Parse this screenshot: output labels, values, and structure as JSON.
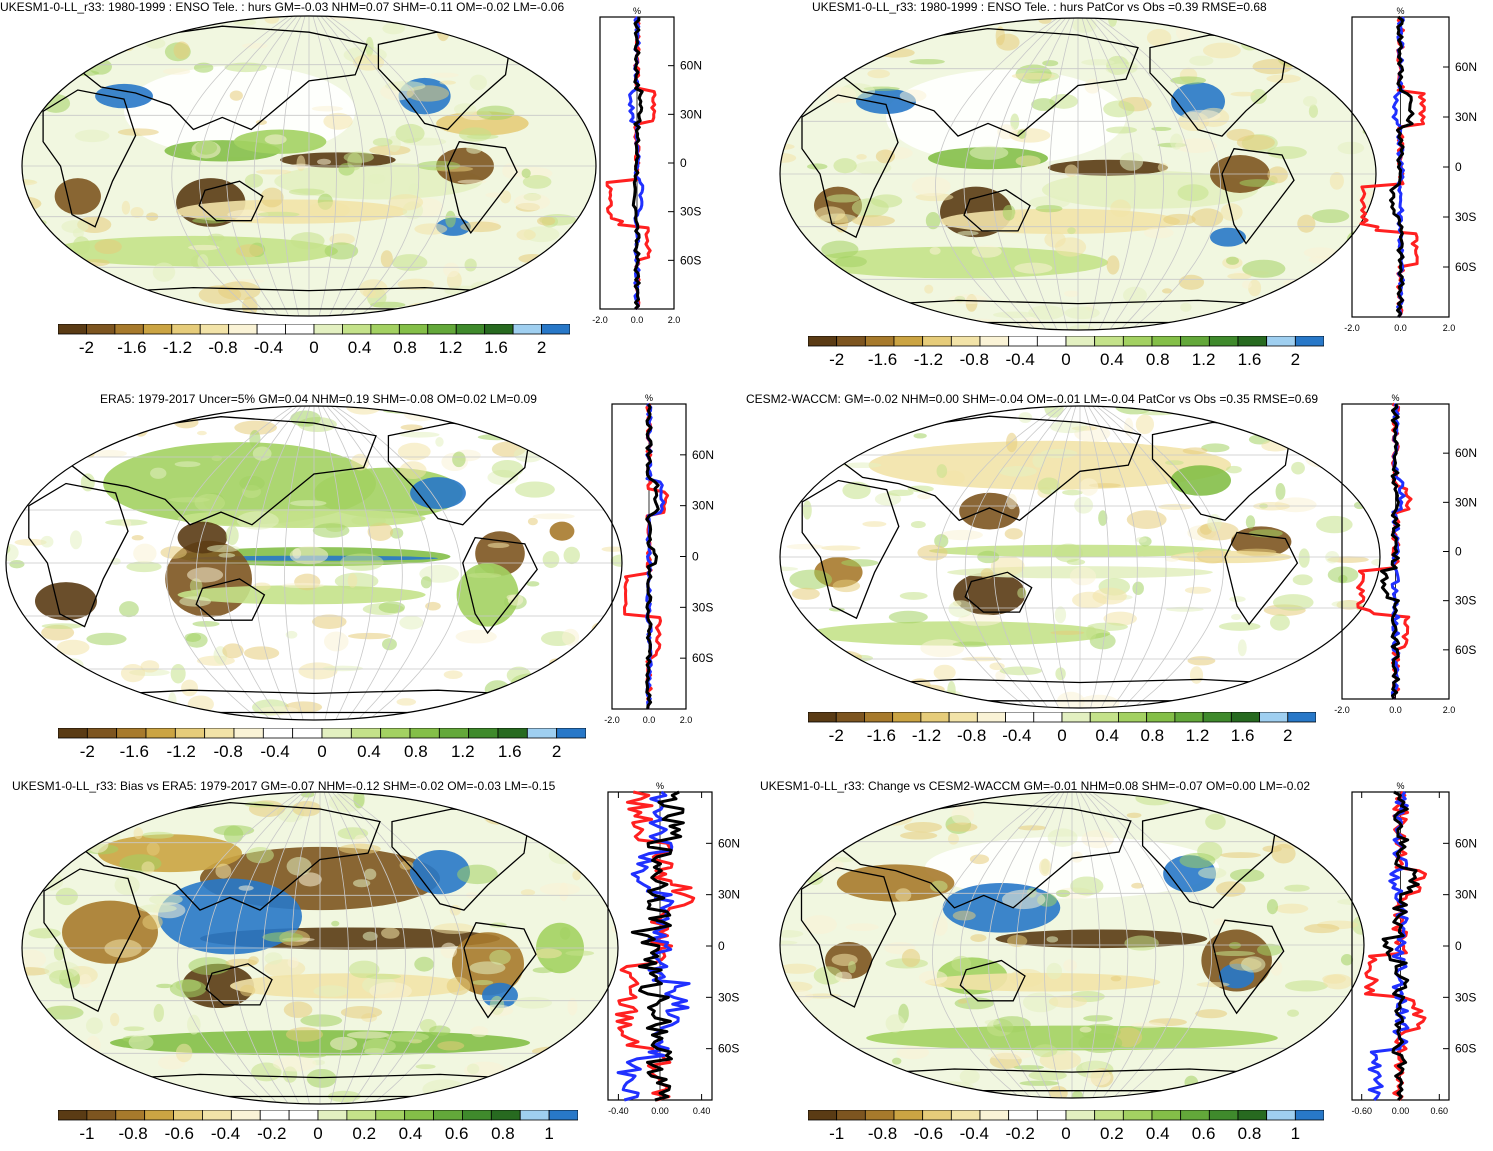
{
  "panels": [
    {
      "id": "p1",
      "title": "UKESM1-0-LL_r33: 1980-1999 : ENSO Tele. : hurs GM=-0.03 NHM=0.07 SHM=-0.11 OM=-0.02 LM=-0.06",
      "zonal": {
        "unit": "%",
        "lat_labels": [
          "60N",
          "30N",
          "0",
          "30S",
          "60S"
        ],
        "x_ticks": [
          "-2.0",
          "0.0",
          "2.0"
        ]
      },
      "colorbar": {
        "labels": [
          "-2",
          "-1.6",
          "-1.2",
          "-0.8",
          "-0.4",
          "0",
          "0.4",
          "0.8",
          "1.2",
          "1.6",
          "2"
        ]
      }
    },
    {
      "id": "p2",
      "title": "UKESM1-0-LL_r33: 1980-1999 : ENSO Tele. : hurs PatCor vs Obs =0.39 RMSE=0.68",
      "zonal": {
        "unit": "%",
        "lat_labels": [
          "60N",
          "30N",
          "0",
          "30S",
          "60S"
        ],
        "x_ticks": [
          "-2.0",
          "0.0",
          "2.0"
        ]
      },
      "colorbar": {
        "labels": [
          "-2",
          "-1.6",
          "-1.2",
          "-0.8",
          "-0.4",
          "0",
          "0.4",
          "0.8",
          "1.2",
          "1.6",
          "2"
        ]
      }
    },
    {
      "id": "p3",
      "title": "ERA5: 1979-2017 Uncer=5% GM=0.04 NHM=0.19 SHM=-0.08 OM=0.02 LM=0.09",
      "zonal": {
        "unit": "%",
        "lat_labels": [
          "60N",
          "30N",
          "0",
          "30S",
          "60S"
        ],
        "x_ticks": [
          "-2.0",
          "0.0",
          "2.0"
        ]
      },
      "colorbar": {
        "labels": [
          "-2",
          "-1.6",
          "-1.2",
          "-0.8",
          "-0.4",
          "0",
          "0.4",
          "0.8",
          "1.2",
          "1.6",
          "2"
        ]
      }
    },
    {
      "id": "p4",
      "title": "CESM2-WACCM: GM=-0.02 NHM=0.00 SHM=-0.04 OM=-0.01 LM=-0.04 PatCor vs Obs =0.35 RMSE=0.69",
      "zonal": {
        "unit": "%",
        "lat_labels": [
          "60N",
          "30N",
          "0",
          "30S",
          "60S"
        ],
        "x_ticks": [
          "-2.0",
          "0.0",
          "2.0"
        ]
      },
      "colorbar": {
        "labels": [
          "-2",
          "-1.6",
          "-1.2",
          "-0.8",
          "-0.4",
          "0",
          "0.4",
          "0.8",
          "1.2",
          "1.6",
          "2"
        ]
      }
    },
    {
      "id": "p5",
      "title": "UKESM1-0-LL_r33: Bias vs ERA5: 1979-2017 GM=-0.07 NHM=-0.12 SHM=-0.02 OM=-0.03 LM=-0.15",
      "zonal": {
        "unit": "%",
        "lat_labels": [
          "60N",
          "30N",
          "0",
          "30S",
          "60S"
        ],
        "x_ticks": [
          "-0.40",
          "0.00",
          "0.40"
        ]
      },
      "colorbar": {
        "labels": [
          "-1",
          "-0.8",
          "-0.6",
          "-0.4",
          "-0.2",
          "0",
          "0.2",
          "0.4",
          "0.6",
          "0.8",
          "1"
        ]
      }
    },
    {
      "id": "p6",
      "title": "UKESM1-0-LL_r33: Change vs CESM2-WACCM GM=-0.01 NHM=0.08 SHM=-0.07 OM=0.00 LM=-0.02",
      "zonal": {
        "unit": "%",
        "lat_labels": [
          "60N",
          "30N",
          "0",
          "30S",
          "60S"
        ],
        "x_ticks": [
          "-0.60",
          "0.00",
          "0.60"
        ]
      },
      "colorbar": {
        "labels": [
          "-1",
          "-0.8",
          "-0.6",
          "-0.4",
          "-0.2",
          "0",
          "0.2",
          "0.4",
          "0.6",
          "0.8",
          "1"
        ]
      }
    }
  ],
  "colors": {
    "palette": [
      "#5a3b14",
      "#7d5520",
      "#a77a2c",
      "#cba443",
      "#e6cc7a",
      "#f2e3a8",
      "#faf3d6",
      "#ffffff",
      "#ffffff",
      "#e3f0c1",
      "#c4e28a",
      "#a3d162",
      "#84bf48",
      "#63a83a",
      "#3f8a2c",
      "#276a20",
      "#9fcff0",
      "#2878c8"
    ],
    "series_red": "#ff2020",
    "series_blue": "#2030ff",
    "series_black": "#000000",
    "land_outline": "#000000",
    "graticule": "#c8c8c8"
  }
}
